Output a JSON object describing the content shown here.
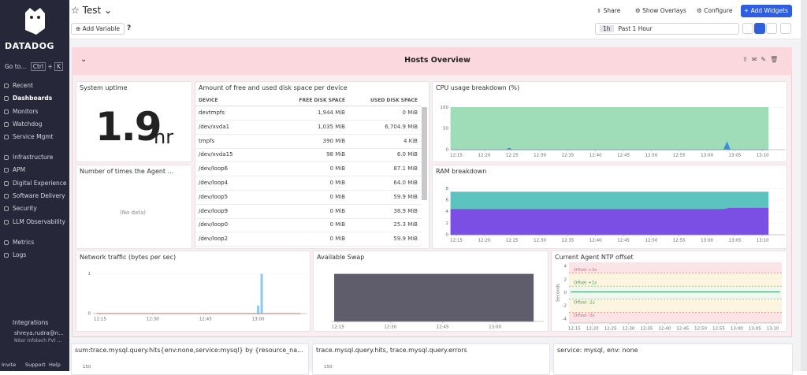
{
  "sidebar": {
    "logo": "DATADOG",
    "search": {
      "label": "Go to...",
      "keys": [
        "Ctrl",
        "K"
      ]
    },
    "nav": [
      [
        "Recent",
        "Dashboards",
        "Monitors",
        "Watchdog",
        "Service Mgmt"
      ],
      [
        "Infrastructure",
        "APM",
        "Digital Experience",
        "Software Delivery",
        "Security",
        "LLM Observability"
      ],
      [
        "Metrics",
        "Logs"
      ]
    ],
    "footer": {
      "integrations": "Integrations",
      "user": "shreya.rudra@n...",
      "org": "Nitor Infotech Pvt ...",
      "actions": [
        "Invite",
        "Support",
        "Help"
      ]
    }
  },
  "header": {
    "title": "Test",
    "actions": [
      "Share",
      "Show Overlays",
      "Configure",
      "Add Widgets"
    ],
    "add_variable": "Add Variable",
    "time": {
      "badge": "1h",
      "label": "Past 1 Hour"
    }
  },
  "group": {
    "title": "Hosts Overview"
  },
  "widgets": {
    "uptime": {
      "title": "System uptime",
      "value": "1.9",
      "unit": "hr"
    },
    "agent": {
      "title": "Number of times the Agent ...",
      "empty": "(No data)"
    },
    "disk": {
      "title": "Amount of free and used disk space per device",
      "columns": [
        "DEVICE",
        "FREE DISK SPACE",
        "USED DISK SPACE"
      ],
      "rows": [
        [
          "devtmpfs",
          "1,944 MiB",
          "0 MiB"
        ],
        [
          "/dev/xvda1",
          "1,035 MiB",
          "6,704.9 MiB"
        ],
        [
          "tmpfs",
          "390 MiB",
          "4 KiB"
        ],
        [
          "/dev/xvda15",
          "98 MiB",
          "6.0 MiB"
        ],
        [
          "/dev/loop6",
          "0 MiB",
          "87.1 MiB"
        ],
        [
          "/dev/loop4",
          "0 MiB",
          "64.0 MiB"
        ],
        [
          "/dev/loop5",
          "0 MiB",
          "59.9 MiB"
        ],
        [
          "/dev/loop9",
          "0 MiB",
          "38.9 MiB"
        ],
        [
          "/dev/loop0",
          "0 MiB",
          "25.3 MiB"
        ],
        [
          "/dev/loop2",
          "0 MiB",
          "59.9 MiB"
        ]
      ]
    },
    "bottom": [
      {
        "title": "sum:trace.mysql.query.hits{env:none,service:mysql} by {resource_na...",
        "tick": "150"
      },
      {
        "title": "trace.mysql.query.hits, trace.mysql.query.errors",
        "tick": "150"
      },
      {
        "title": "service: mysql, env: none"
      }
    ]
  },
  "chart_data": [
    {
      "type": "area",
      "title": "CPU usage breakdown (%)",
      "xlim": [
        734,
        794
      ],
      "xticks": [
        {
          "value": 735,
          "label": "12:15"
        },
        {
          "value": 740,
          "label": "12:20"
        },
        {
          "value": 745,
          "label": "12:25"
        },
        {
          "value": 750,
          "label": "12:30"
        },
        {
          "value": 755,
          "label": "12:35"
        },
        {
          "value": 760,
          "label": "12:40"
        },
        {
          "value": 765,
          "label": "12:45"
        },
        {
          "value": 770,
          "label": "12:50"
        },
        {
          "value": 775,
          "label": "12:55"
        },
        {
          "value": 780,
          "label": "13:00"
        },
        {
          "value": 785,
          "label": "13:05"
        },
        {
          "value": 790,
          "label": "13:10"
        }
      ],
      "ylim": [
        0,
        112
      ],
      "yticks": [
        0,
        50,
        100
      ],
      "stacked": false,
      "series": [
        {
          "color": "#9fdcb8",
          "x": [
            734,
            791
          ],
          "values": [
            100,
            100
          ]
        },
        {
          "color": "#3d8fd6",
          "x": [
            734,
            744,
            744.5,
            745,
            783,
            783.6,
            784.2,
            791
          ],
          "values": [
            0,
            0,
            4,
            0,
            0,
            18,
            0,
            0
          ]
        }
      ]
    },
    {
      "type": "area",
      "title": "RAM breakdown",
      "xlim": [
        734,
        794
      ],
      "xticks": [
        {
          "value": 735,
          "label": "12:15"
        },
        {
          "value": 740,
          "label": "12:20"
        },
        {
          "value": 745,
          "label": "12:25"
        },
        {
          "value": 750,
          "label": "12:30"
        },
        {
          "value": 755,
          "label": "12:35"
        },
        {
          "value": 760,
          "label": "12:40"
        },
        {
          "value": 765,
          "label": "12:45"
        },
        {
          "value": 770,
          "label": "12:50"
        },
        {
          "value": 775,
          "label": "12:55"
        },
        {
          "value": 780,
          "label": "13:00"
        },
        {
          "value": 785,
          "label": "13:05"
        },
        {
          "value": 790,
          "label": "13:10"
        }
      ],
      "ylim": [
        0,
        9
      ],
      "yticks": [
        0,
        2,
        4,
        6,
        8
      ],
      "stacked": true,
      "series": [
        {
          "color": "#7b4fe3",
          "x": [
            734,
            783,
            784,
            791
          ],
          "values": [
            4.5,
            4.5,
            4.7,
            4.7
          ]
        },
        {
          "color": "#5dc3be",
          "x": [
            734,
            783,
            784,
            791
          ],
          "values": [
            2.9,
            2.9,
            2.7,
            2.7
          ]
        }
      ]
    },
    {
      "type": "bar",
      "title": "Network traffic (bytes per sec)",
      "xlim": [
        733,
        794
      ],
      "xticks": [
        {
          "value": 735,
          "label": "12:15"
        },
        {
          "value": 750,
          "label": "12:30"
        },
        {
          "value": 765,
          "label": "12:45"
        },
        {
          "value": 780,
          "label": "13:00"
        }
      ],
      "ylim": [
        0,
        1.15
      ],
      "yticks": [
        0,
        1
      ],
      "series": [
        {
          "color": "#8ec8f2",
          "x": [
            780,
            781
          ],
          "values": [
            0.2,
            1
          ]
        },
        {
          "type": "line",
          "color": "#d54b4b",
          "x": [
            734,
            792
          ],
          "values": [
            0,
            0
          ]
        }
      ]
    },
    {
      "type": "area",
      "title": "Available Swap",
      "xlim": [
        733,
        794
      ],
      "xticks": [
        {
          "value": 735,
          "label": "12:15"
        },
        {
          "value": 750,
          "label": "12:30"
        },
        {
          "value": 765,
          "label": "12:45"
        },
        {
          "value": 780,
          "label": "13:00"
        }
      ],
      "ylim": [
        0,
        1.1
      ],
      "stacked": false,
      "series": [
        {
          "color": "#5f5c6b",
          "x": [
            734,
            791
          ],
          "values": [
            1,
            1
          ]
        }
      ]
    },
    {
      "type": "line",
      "title": "Current Agent NTP offset",
      "ylabel": "Seconds",
      "xlim": [
        733.5,
        792.5
      ],
      "xticks": [
        {
          "value": 735,
          "label": "12:15"
        },
        {
          "value": 740,
          "label": "12:20"
        },
        {
          "value": 745,
          "label": "12:25"
        },
        {
          "value": 750,
          "label": "12:30"
        },
        {
          "value": 755,
          "label": "12:35"
        },
        {
          "value": 760,
          "label": "12:40"
        },
        {
          "value": 765,
          "label": "12:45"
        },
        {
          "value": 770,
          "label": "12:50"
        },
        {
          "value": 775,
          "label": "12:55"
        },
        {
          "value": 780,
          "label": "13:00"
        },
        {
          "value": 785,
          "label": "13:05"
        },
        {
          "value": 790,
          "label": "13:10"
        }
      ],
      "ylim": [
        -4.6,
        4.6
      ],
      "yticks": [
        4,
        2,
        0,
        -2,
        -4
      ],
      "markers": [
        {
          "label": "Offset +3s",
          "value": 3,
          "color": "#e0697a"
        },
        {
          "label": "Offset +1s",
          "value": 1,
          "color": "#2f9a5b"
        },
        {
          "label": "Offset -1s",
          "value": -1,
          "color": "#2f9a5b"
        },
        {
          "label": "Offset -3s",
          "value": -3,
          "color": "#e0697a"
        }
      ],
      "series": [
        {
          "color": "#2f8f5b",
          "x": [
            734,
            792
          ],
          "values": [
            0.1,
            0.1
          ]
        }
      ]
    }
  ]
}
